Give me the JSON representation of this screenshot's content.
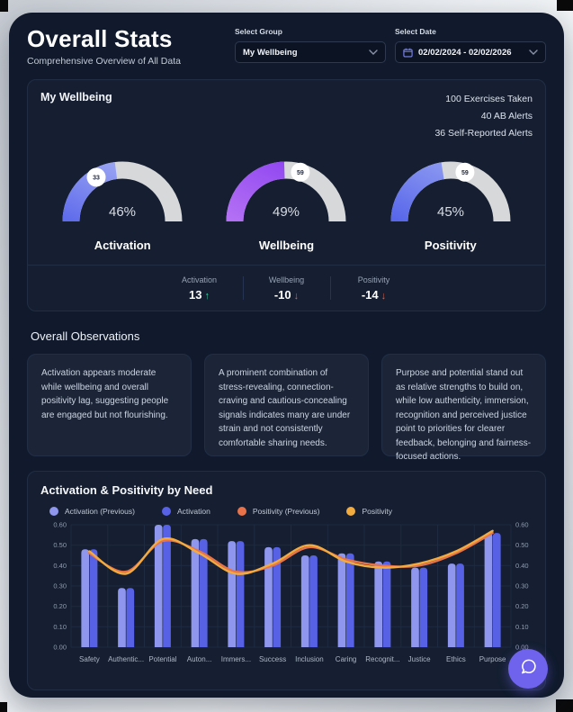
{
  "header": {
    "title": "Overall Stats",
    "subtitle": "Comprehensive Overview of All Data"
  },
  "filters": {
    "group_label": "Select Group",
    "group_value": "My Wellbeing",
    "date_label": "Select Date",
    "date_value": "02/02/2024 - 02/02/2026"
  },
  "wellbeing": {
    "title": "My Wellbeing",
    "counters": [
      "100 Exercises Taken",
      "40 AB Alerts",
      "36 Self-Reported Alerts"
    ],
    "track_color": "#d7d8da",
    "gauges": [
      {
        "label": "Activation",
        "percent": 46,
        "display": "46%",
        "badge": "33",
        "color_start": "#5f6ceb",
        "color_end": "#aab3f5"
      },
      {
        "label": "Wellbeing",
        "percent": 49,
        "display": "49%",
        "badge": "59",
        "color_start": "#b470f4",
        "color_end": "#8a3ff0"
      },
      {
        "label": "Positivity",
        "percent": 45,
        "display": "45%",
        "badge": "59",
        "color_start": "#5867ea",
        "color_end": "#9aa6f3"
      }
    ],
    "deltas": [
      {
        "label": "Activation",
        "value": "13",
        "arrow": "↑",
        "trend": "up"
      },
      {
        "label": "Wellbeing",
        "value": "-10",
        "arrow": "↓",
        "trend": "down"
      },
      {
        "label": "Positivity",
        "value": "-14",
        "arrow": "↓",
        "trend": "down"
      }
    ],
    "trend_colors": {
      "up": "#35d4a0",
      "down": "#e2604d"
    }
  },
  "observations": {
    "title": "Overall Observations",
    "cards": [
      "Activation appears moderate while wellbeing and overall positivity lag, suggesting people are engaged but not flourishing.",
      "A prominent combination of stress-revealing, connection-craving and cautious-concealing signals indicates many are under strain and not consistently comfortable sharing needs.",
      "Purpose and potential stand out as relative strengths to build on, while low authenticity, immersion, recognition and perceived justice point to priorities for clearer feedback, belonging and fairness-focused actions."
    ]
  },
  "chart_card": {
    "title": "Activation & Positivity by Need"
  },
  "chart_data": {
    "type": "bar+line",
    "title": "Activation & Positivity by Need",
    "categories": [
      "Safety",
      "Authentic...",
      "Potential",
      "Auton...",
      "Immers...",
      "Success",
      "Inclusion",
      "Caring",
      "Recognit...",
      "Justice",
      "Ethics",
      "Purpose"
    ],
    "series": [
      {
        "name": "Activation (Previous)",
        "type": "bar",
        "color": "#8e96ee",
        "values": [
          0.48,
          0.29,
          0.6,
          0.53,
          0.52,
          0.49,
          0.45,
          0.46,
          0.42,
          0.39,
          0.41,
          0.56
        ]
      },
      {
        "name": "Activation",
        "type": "bar",
        "color": "#5661e6",
        "values": [
          0.48,
          0.29,
          0.6,
          0.53,
          0.52,
          0.49,
          0.45,
          0.46,
          0.42,
          0.39,
          0.41,
          0.56
        ]
      },
      {
        "name": "Positivity (Previous)",
        "type": "line",
        "color": "#e8734a",
        "values": [
          0.46,
          0.37,
          0.52,
          0.47,
          0.37,
          0.4,
          0.49,
          0.43,
          0.4,
          0.4,
          0.46,
          0.56
        ]
      },
      {
        "name": "Positivity",
        "type": "line",
        "color": "#f2ab3f",
        "values": [
          0.47,
          0.36,
          0.53,
          0.46,
          0.36,
          0.41,
          0.5,
          0.42,
          0.39,
          0.41,
          0.47,
          0.57
        ]
      }
    ],
    "ylim": [
      0,
      0.6
    ],
    "yticks": [
      "0.60",
      "0.50",
      "0.40",
      "0.30",
      "0.20",
      "0.10",
      "0.00"
    ],
    "grid": true,
    "legend_position": "top",
    "y_axis_sides": "both"
  },
  "colors": {
    "chat_button": "#6f63ee",
    "accent": "#6f63ee"
  }
}
